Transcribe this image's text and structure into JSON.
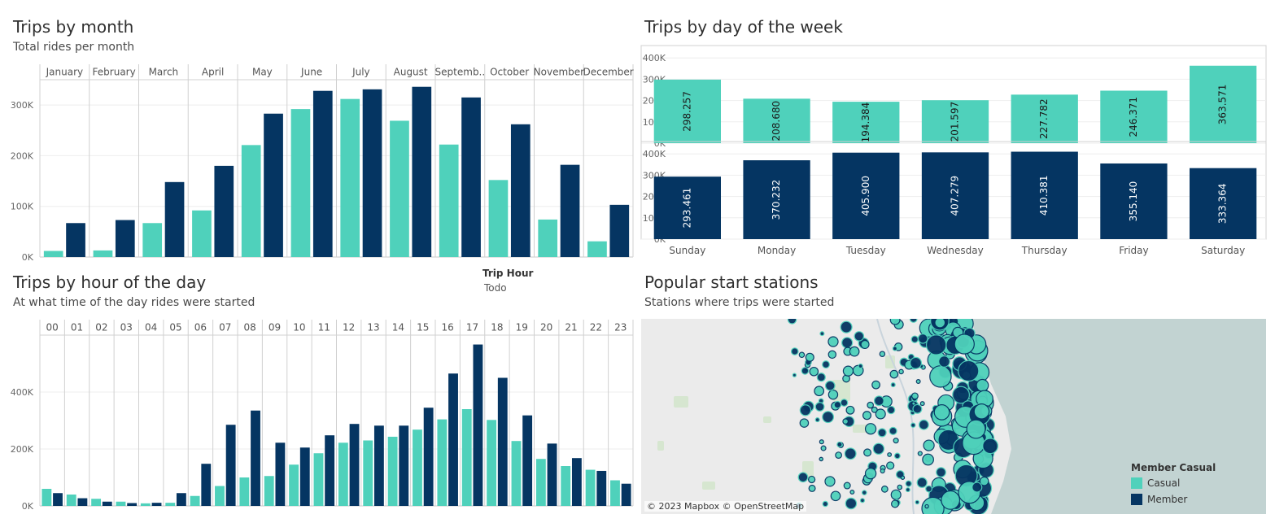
{
  "colors": {
    "casual": "#4fd1bb",
    "member": "#053562"
  },
  "panels": {
    "month": {
      "title": "Trips by month",
      "subtitle": "Total rides per month"
    },
    "week": {
      "title": "Trips by day of the week"
    },
    "hour": {
      "title": "Trips by hour of the day",
      "subtitle": "At what time of the day rides were started"
    },
    "map": {
      "title": "Popular start stations",
      "subtitle": "Stations where trips were started",
      "attribution": "© 2023 Mapbox © OpenStreetMap"
    }
  },
  "filter": {
    "label": "Trip Hour",
    "value": "Todo"
  },
  "legend": {
    "title": "Member Casual",
    "items": [
      "Casual",
      "Member"
    ]
  },
  "chart_data": [
    {
      "type": "bar",
      "title": "Trips by month",
      "subtitle": "Total rides per month",
      "categories": [
        "January",
        "February",
        "March",
        "April",
        "May",
        "June",
        "July",
        "August",
        "Septemb..",
        "October",
        "November",
        "December"
      ],
      "series": [
        {
          "values": [
            12000,
            13000,
            67000,
            92000,
            221000,
            292000,
            312000,
            269000,
            222000,
            152000,
            74000,
            31000
          ]
        },
        {
          "values": [
            67000,
            73000,
            148000,
            180000,
            283000,
            328000,
            331000,
            336000,
            315000,
            262000,
            182000,
            103000
          ]
        }
      ],
      "yticks": [
        "0K",
        "100K",
        "200K",
        "300K"
      ],
      "ylim": [
        0,
        350000
      ],
      "grid": true
    },
    {
      "type": "bar",
      "title": "Trips by day of the week",
      "categories": [
        "Sunday",
        "Monday",
        "Tuesday",
        "Wednesday",
        "Thursday",
        "Friday",
        "Saturday"
      ],
      "series": [
        {
          "values": [
            298257,
            208680,
            194384,
            201597,
            227782,
            246371,
            363571
          ],
          "labels": [
            "298.257",
            "208.680",
            "194.384",
            "201.597",
            "227.782",
            "246.371",
            "363.571"
          ]
        },
        {
          "values": [
            293461,
            370232,
            405900,
            407279,
            410381,
            355140,
            333364
          ],
          "labels": [
            "293.461",
            "370.232",
            "405.900",
            "407.279",
            "410.381",
            "355.140",
            "333.364"
          ]
        }
      ],
      "yticks": [
        "0K",
        "100K",
        "200K",
        "300K",
        "400K"
      ],
      "ylim": [
        0,
        420000
      ],
      "grid": true
    },
    {
      "type": "bar",
      "title": "Trips by hour of the day",
      "subtitle": "At what time of the day rides were started",
      "categories": [
        "00",
        "01",
        "02",
        "03",
        "04",
        "05",
        "06",
        "07",
        "08",
        "09",
        "10",
        "11",
        "12",
        "13",
        "14",
        "15",
        "16",
        "17",
        "18",
        "19",
        "20",
        "21",
        "22",
        "23"
      ],
      "series": [
        {
          "values": [
            60000,
            40000,
            25000,
            15000,
            9000,
            11000,
            35000,
            70000,
            100000,
            105000,
            145000,
            185000,
            222000,
            230000,
            243000,
            268000,
            304000,
            340000,
            302000,
            228000,
            165000,
            140000,
            127000,
            90000
          ]
        },
        {
          "values": [
            45000,
            27000,
            15000,
            10000,
            11000,
            45000,
            148000,
            285000,
            335000,
            222000,
            205000,
            248000,
            288000,
            282000,
            282000,
            345000,
            465000,
            567000,
            450000,
            318000,
            219000,
            168000,
            123000,
            78000
          ]
        }
      ],
      "yticks": [
        "0K",
        "200K",
        "400K"
      ],
      "ylim": [
        0,
        600000
      ],
      "grid": true
    }
  ]
}
